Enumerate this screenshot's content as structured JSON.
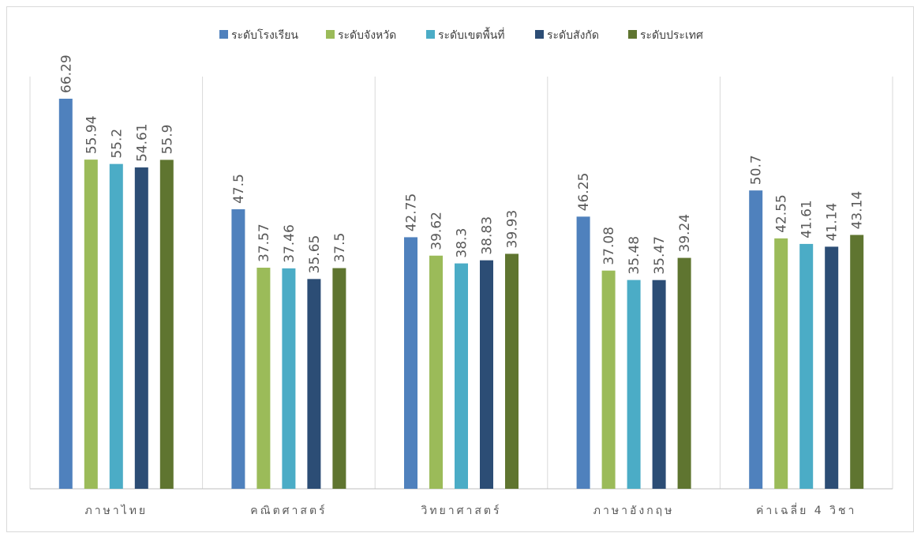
{
  "chart_data": {
    "type": "bar",
    "categories": [
      "ภาษาไทย",
      "คณิตศาสตร์",
      "วิทยาศาสตร์",
      "ภาษาอังกฤษ",
      "ค่าเฉลี่ย 4 วิชา"
    ],
    "series": [
      {
        "name": "ระดับโรงเรียน",
        "color": "#4F81BD",
        "values": [
          66.29,
          47.5,
          42.75,
          46.25,
          50.7
        ]
      },
      {
        "name": "ระดับจังหวัด",
        "color": "#9BBB59",
        "values": [
          55.94,
          37.57,
          39.62,
          37.08,
          42.55
        ]
      },
      {
        "name": "ระดับเขตพื้นที่",
        "color": "#4BACC6",
        "values": [
          55.2,
          37.46,
          38.3,
          35.48,
          41.61
        ]
      },
      {
        "name": "ระดับสังกัด",
        "color": "#2C4D75",
        "values": [
          54.61,
          35.65,
          38.83,
          35.47,
          41.14
        ]
      },
      {
        "name": "ระดับประเทศ",
        "color": "#5F7530",
        "values": [
          55.9,
          37.5,
          39.93,
          39.24,
          43.14
        ]
      }
    ],
    "value_labels": [
      [
        "66.29",
        "47.5",
        "42.75",
        "46.25",
        "50.7"
      ],
      [
        "55.94",
        "37.57",
        "39.62",
        "37.08",
        "42.55"
      ],
      [
        "55.2",
        "37.46",
        "38.3",
        "35.48",
        "41.61"
      ],
      [
        "54.61",
        "35.65",
        "38.83",
        "35.47",
        "41.14"
      ],
      [
        "55.9",
        "37.5",
        "39.93",
        "39.24",
        "43.14"
      ]
    ],
    "ylim": [
      0,
      70
    ],
    "legend_position": "top",
    "grid": "vertical category separators",
    "title": "",
    "xlabel": "",
    "ylabel": ""
  }
}
